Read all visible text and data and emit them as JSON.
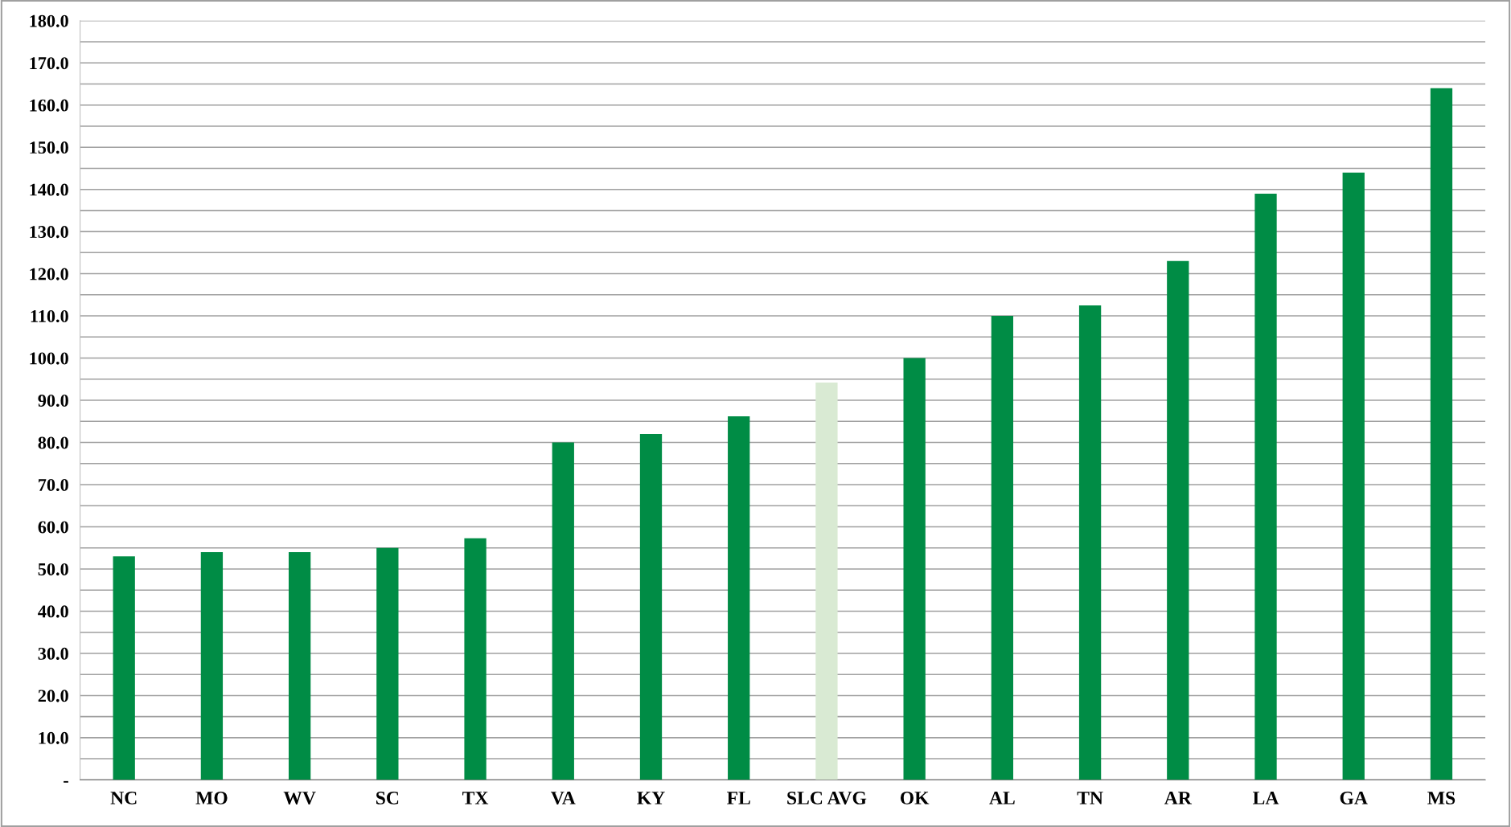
{
  "chart_data": {
    "type": "bar",
    "categories": [
      "NC",
      "MO",
      "WV",
      "SC",
      "TX",
      "VA",
      "KY",
      "FL",
      "SLC AVG",
      "OK",
      "AL",
      "TN",
      "AR",
      "LA",
      "GA",
      "MS"
    ],
    "values": [
      53,
      54,
      54,
      55,
      57.3,
      80,
      82,
      86.2,
      94.2,
      100,
      110,
      112.5,
      123,
      139,
      144,
      164
    ],
    "colors": [
      "#008c45",
      "#008c45",
      "#008c45",
      "#008c45",
      "#008c45",
      "#008c45",
      "#008c45",
      "#008c45",
      "#d9ead3",
      "#008c45",
      "#008c45",
      "#008c45",
      "#008c45",
      "#008c45",
      "#008c45",
      "#008c45"
    ],
    "ylim": [
      0,
      180
    ],
    "yticks": [
      {
        "value": 0,
        "label": "-"
      },
      {
        "value": 5,
        "label": null
      },
      {
        "value": 10,
        "label": "10.0"
      },
      {
        "value": 15,
        "label": null
      },
      {
        "value": 20,
        "label": "20.0"
      },
      {
        "value": 25,
        "label": null
      },
      {
        "value": 30,
        "label": "30.0"
      },
      {
        "value": 35,
        "label": null
      },
      {
        "value": 40,
        "label": "40.0"
      },
      {
        "value": 45,
        "label": null
      },
      {
        "value": 50,
        "label": "50.0"
      },
      {
        "value": 55,
        "label": null
      },
      {
        "value": 60,
        "label": "60.0"
      },
      {
        "value": 65,
        "label": null
      },
      {
        "value": 70,
        "label": "70.0"
      },
      {
        "value": 75,
        "label": null
      },
      {
        "value": 80,
        "label": "80.0"
      },
      {
        "value": 85,
        "label": null
      },
      {
        "value": 90,
        "label": "90.0"
      },
      {
        "value": 95,
        "label": null
      },
      {
        "value": 100,
        "label": "100.0"
      },
      {
        "value": 105,
        "label": null
      },
      {
        "value": 110,
        "label": "110.0"
      },
      {
        "value": 115,
        "label": null
      },
      {
        "value": 120,
        "label": "120.0"
      },
      {
        "value": 125,
        "label": null
      },
      {
        "value": 130,
        "label": "130.0"
      },
      {
        "value": 135,
        "label": null
      },
      {
        "value": 140,
        "label": "140.0"
      },
      {
        "value": 145,
        "label": null
      },
      {
        "value": 150,
        "label": "150.0"
      },
      {
        "value": 155,
        "label": null
      },
      {
        "value": 160,
        "label": "160.0"
      },
      {
        "value": 165,
        "label": null
      },
      {
        "value": 170,
        "label": "170.0"
      },
      {
        "value": 175,
        "label": null
      },
      {
        "value": 180,
        "label": "180.0"
      }
    ],
    "grid": "y",
    "legend": false
  }
}
